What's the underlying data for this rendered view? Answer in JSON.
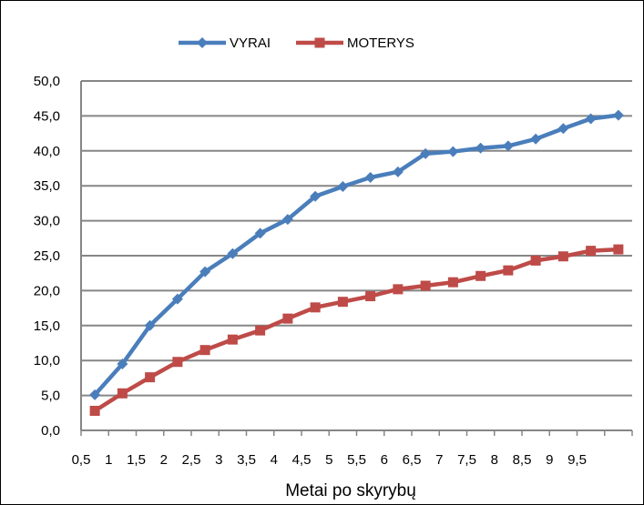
{
  "chart_data": {
    "type": "line",
    "title": "",
    "xlabel": "Metai po skyrybų",
    "ylabel": "",
    "categories": [
      "0,5",
      "1",
      "1,5",
      "2",
      "2,5",
      "3",
      "3,5",
      "4",
      "4,5",
      "5",
      "5,5",
      "6",
      "6,5",
      "7",
      "7,5",
      "8",
      "8,5",
      "9",
      "9,5",
      ""
    ],
    "y_ticks": [
      "0,0",
      "5,0",
      "10,0",
      "15,0",
      "20,0",
      "25,0",
      "30,0",
      "35,0",
      "40,0",
      "45,0",
      "50,0"
    ],
    "ylim": [
      0,
      50
    ],
    "grid": "horizontal",
    "legend_position": "top",
    "series": [
      {
        "name": "VYRAI",
        "color": "#4a7ebb",
        "marker": "diamond",
        "values": [
          5.1,
          9.5,
          15.0,
          18.8,
          22.7,
          25.3,
          28.2,
          30.2,
          33.5,
          34.9,
          36.2,
          37.0,
          39.6,
          39.9,
          40.4,
          40.7,
          41.7,
          43.2,
          44.6,
          45.1
        ]
      },
      {
        "name": "MOTERYS",
        "color": "#be4b48",
        "marker": "square",
        "values": [
          2.8,
          5.3,
          7.6,
          9.8,
          11.5,
          13.0,
          14.3,
          16.0,
          17.6,
          18.4,
          19.2,
          20.2,
          20.7,
          21.2,
          22.1,
          22.9,
          24.3,
          24.9,
          25.7,
          25.9
        ]
      }
    ]
  }
}
